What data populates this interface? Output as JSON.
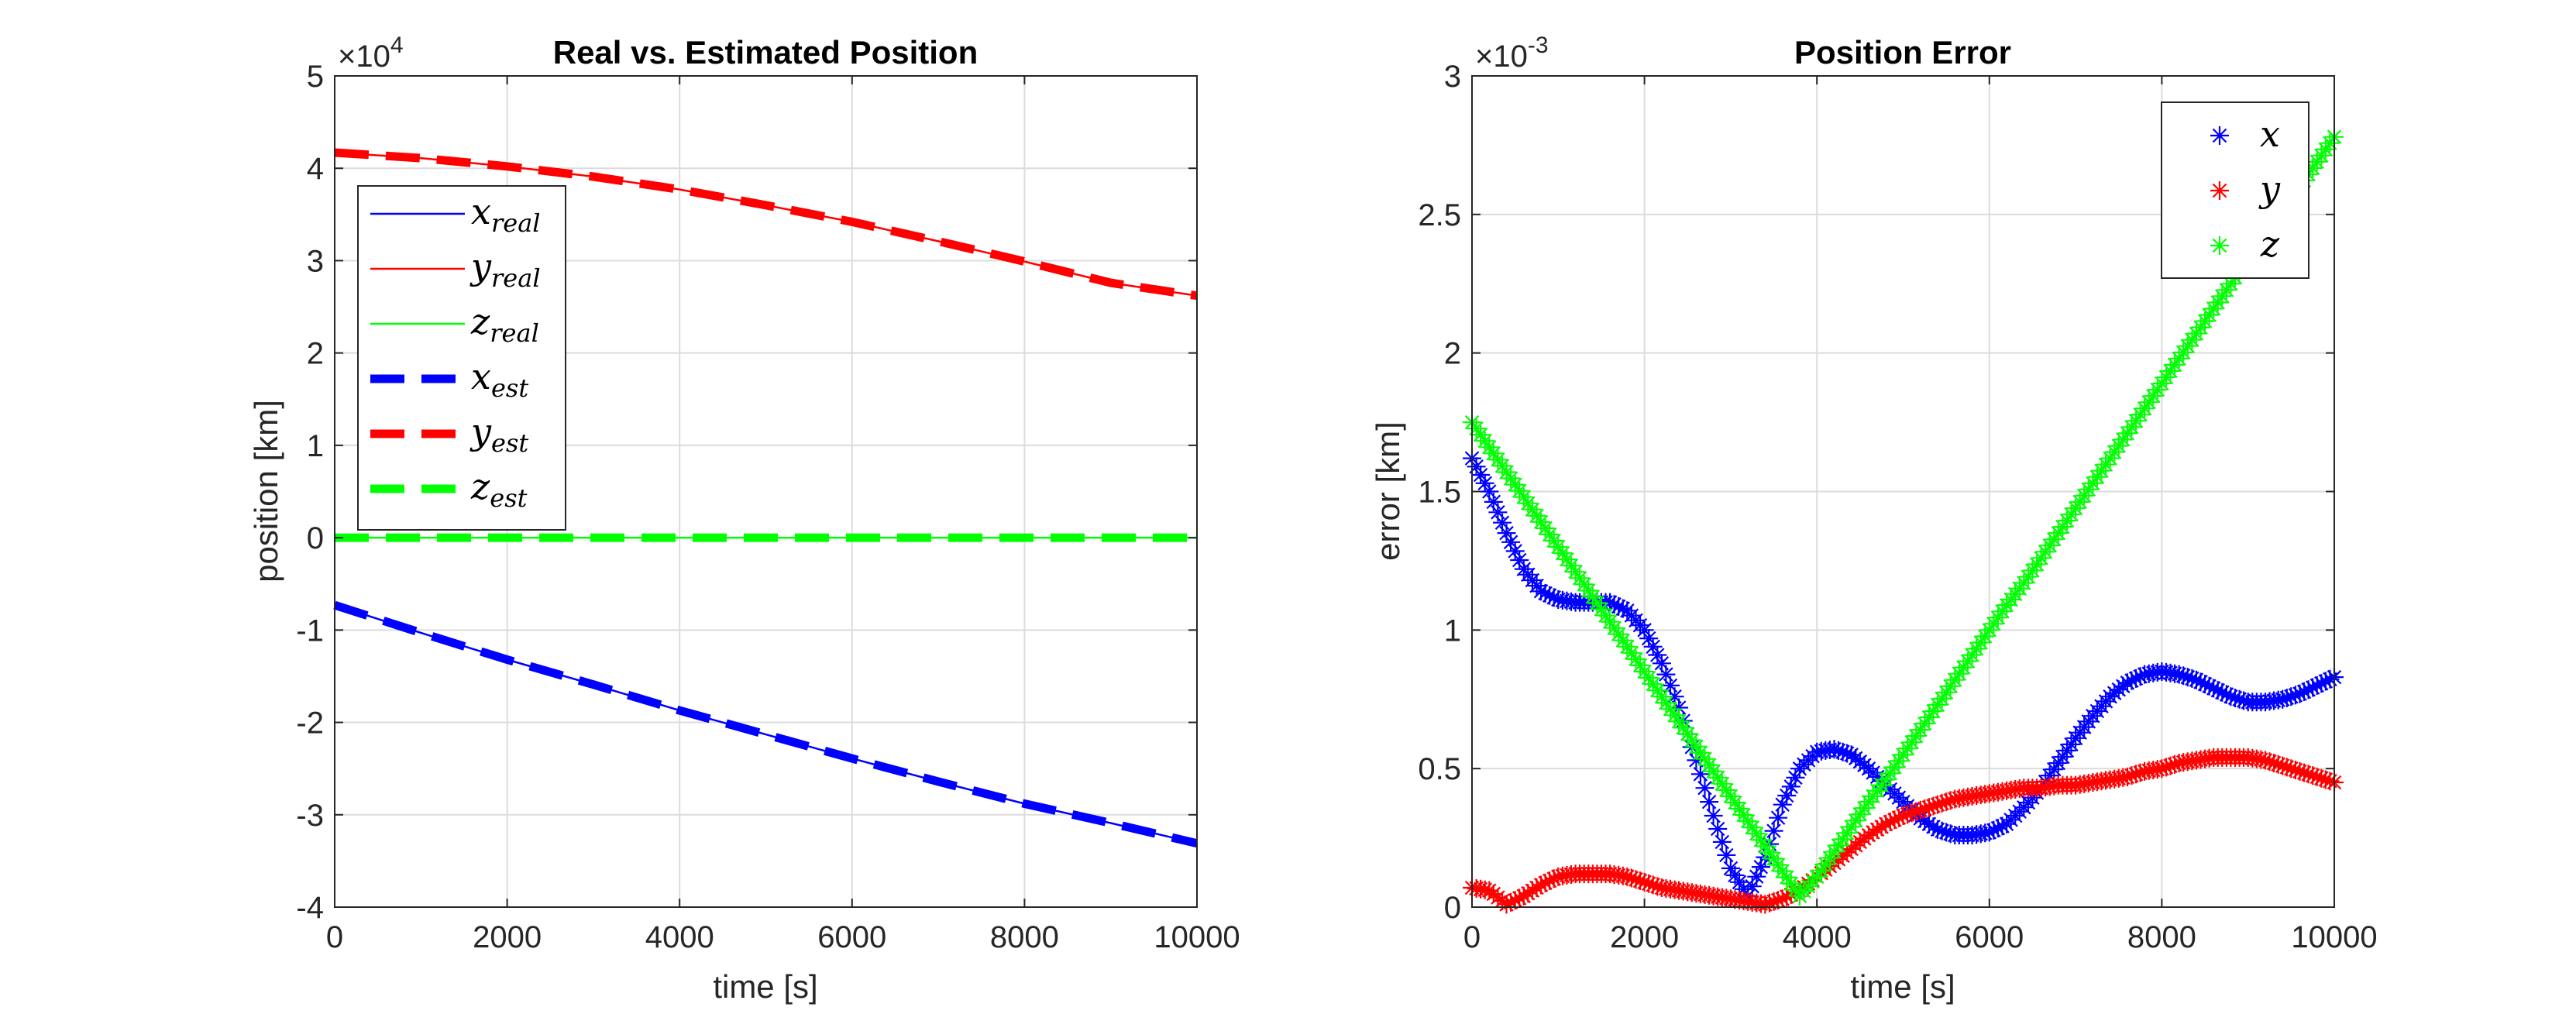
{
  "chart_data": [
    {
      "type": "line",
      "title": "Real vs. Estimated Position",
      "xlabel": "time [s]",
      "ylabel": "position [km]",
      "y_exponent_label": "×10^4",
      "xlim": [
        0,
        10000
      ],
      "ylim": [
        -4,
        5
      ],
      "xticks": [
        "0",
        "2000",
        "4000",
        "6000",
        "8000",
        "10000"
      ],
      "yticks": [
        "-4",
        "-3",
        "-2",
        "-1",
        "0",
        "1",
        "2",
        "3",
        "4",
        "5"
      ],
      "grid": true,
      "legend_placement": "upper-left",
      "x": [
        0,
        1000,
        2000,
        3000,
        4000,
        5000,
        6000,
        7000,
        8000,
        9000,
        10000
      ],
      "series": [
        {
          "name": "x_real",
          "label_main": "x",
          "label_sub": "real",
          "style": "solid",
          "color": "#0000ff",
          "values": [
            -0.73,
            -1.03,
            -1.32,
            -1.59,
            -1.87,
            -2.13,
            -2.39,
            -2.64,
            -2.88,
            -3.09,
            -3.31
          ]
        },
        {
          "name": "y_real",
          "label_main": "y",
          "label_sub": "real",
          "style": "solid",
          "color": "#ff0000",
          "values": [
            4.17,
            4.11,
            4.02,
            3.91,
            3.77,
            3.6,
            3.42,
            3.21,
            2.99,
            2.76,
            2.62
          ]
        },
        {
          "name": "z_real",
          "label_main": "z",
          "label_sub": "real",
          "style": "solid",
          "color": "#00ff00",
          "values": [
            0,
            0,
            0,
            0,
            0,
            0,
            0,
            0,
            0,
            0,
            0
          ]
        },
        {
          "name": "x_est",
          "label_main": "x",
          "label_sub": "est",
          "style": "dashed",
          "color": "#0000ff",
          "values": [
            -0.73,
            -1.03,
            -1.32,
            -1.59,
            -1.87,
            -2.13,
            -2.39,
            -2.64,
            -2.88,
            -3.09,
            -3.31
          ]
        },
        {
          "name": "y_est",
          "label_main": "y",
          "label_sub": "est",
          "style": "dashed",
          "color": "#ff0000",
          "values": [
            4.17,
            4.11,
            4.02,
            3.91,
            3.77,
            3.6,
            3.42,
            3.21,
            2.99,
            2.76,
            2.62
          ]
        },
        {
          "name": "z_est",
          "label_main": "z",
          "label_sub": "est",
          "style": "dashed",
          "color": "#00ff00",
          "values": [
            0,
            0,
            0,
            0,
            0,
            0,
            0,
            0,
            0,
            0,
            0
          ]
        }
      ]
    },
    {
      "type": "scatter",
      "title": "Position Error",
      "xlabel": "time [s]",
      "ylabel": "error [km]",
      "y_exponent_label": "×10^-3",
      "xlim": [
        0,
        10000
      ],
      "ylim": [
        0,
        3
      ],
      "xticks": [
        "0",
        "2000",
        "4000",
        "6000",
        "8000",
        "10000"
      ],
      "yticks": [
        "0",
        "0.5",
        "1",
        "1.5",
        "2",
        "2.5",
        "3"
      ],
      "grid": true,
      "legend_placement": "top-right",
      "marker": "asterisk",
      "x": [
        0,
        200,
        400,
        600,
        800,
        1000,
        1200,
        1400,
        1600,
        1800,
        2000,
        2200,
        2400,
        2600,
        2800,
        3000,
        3200,
        3400,
        3600,
        3800,
        4000,
        4200,
        4400,
        4600,
        4800,
        5000,
        5200,
        5400,
        5600,
        5800,
        6000,
        6200,
        6400,
        6600,
        6800,
        7000,
        7200,
        7400,
        7600,
        7800,
        8000,
        8200,
        8400,
        8600,
        8800,
        9000,
        9200,
        9400,
        9600,
        9800,
        10000
      ],
      "series": [
        {
          "name": "x",
          "color": "#0000ff",
          "values": [
            1.62,
            1.5,
            1.35,
            1.22,
            1.14,
            1.11,
            1.1,
            1.1,
            1.1,
            1.07,
            1.0,
            0.88,
            0.72,
            0.53,
            0.33,
            0.14,
            0.04,
            0.18,
            0.37,
            0.5,
            0.56,
            0.57,
            0.55,
            0.5,
            0.44,
            0.38,
            0.32,
            0.28,
            0.26,
            0.26,
            0.27,
            0.3,
            0.36,
            0.43,
            0.52,
            0.61,
            0.69,
            0.76,
            0.81,
            0.84,
            0.85,
            0.84,
            0.82,
            0.79,
            0.76,
            0.74,
            0.74,
            0.75,
            0.77,
            0.8,
            0.83
          ]
        },
        {
          "name": "y",
          "color": "#ff0000",
          "values": [
            0.07,
            0.06,
            0.01,
            0.04,
            0.08,
            0.11,
            0.12,
            0.12,
            0.12,
            0.11,
            0.09,
            0.07,
            0.06,
            0.05,
            0.04,
            0.03,
            0.02,
            0.01,
            0.03,
            0.06,
            0.11,
            0.16,
            0.21,
            0.26,
            0.3,
            0.33,
            0.35,
            0.37,
            0.39,
            0.4,
            0.41,
            0.42,
            0.43,
            0.43,
            0.44,
            0.44,
            0.45,
            0.46,
            0.47,
            0.49,
            0.5,
            0.52,
            0.53,
            0.54,
            0.54,
            0.54,
            0.53,
            0.51,
            0.49,
            0.47,
            0.45
          ]
        },
        {
          "name": "z",
          "color": "#00ff00",
          "values": [
            1.75,
            1.66,
            1.57,
            1.48,
            1.39,
            1.3,
            1.21,
            1.12,
            1.03,
            0.94,
            0.85,
            0.76,
            0.67,
            0.58,
            0.49,
            0.4,
            0.31,
            0.22,
            0.13,
            0.04,
            0.11,
            0.2,
            0.29,
            0.38,
            0.46,
            0.55,
            0.64,
            0.73,
            0.82,
            0.91,
            1.0,
            1.09,
            1.17,
            1.26,
            1.35,
            1.44,
            1.53,
            1.62,
            1.71,
            1.8,
            1.89,
            1.98,
            2.07,
            2.16,
            2.25,
            2.34,
            2.43,
            2.51,
            2.6,
            2.69,
            2.78
          ]
        }
      ]
    }
  ]
}
